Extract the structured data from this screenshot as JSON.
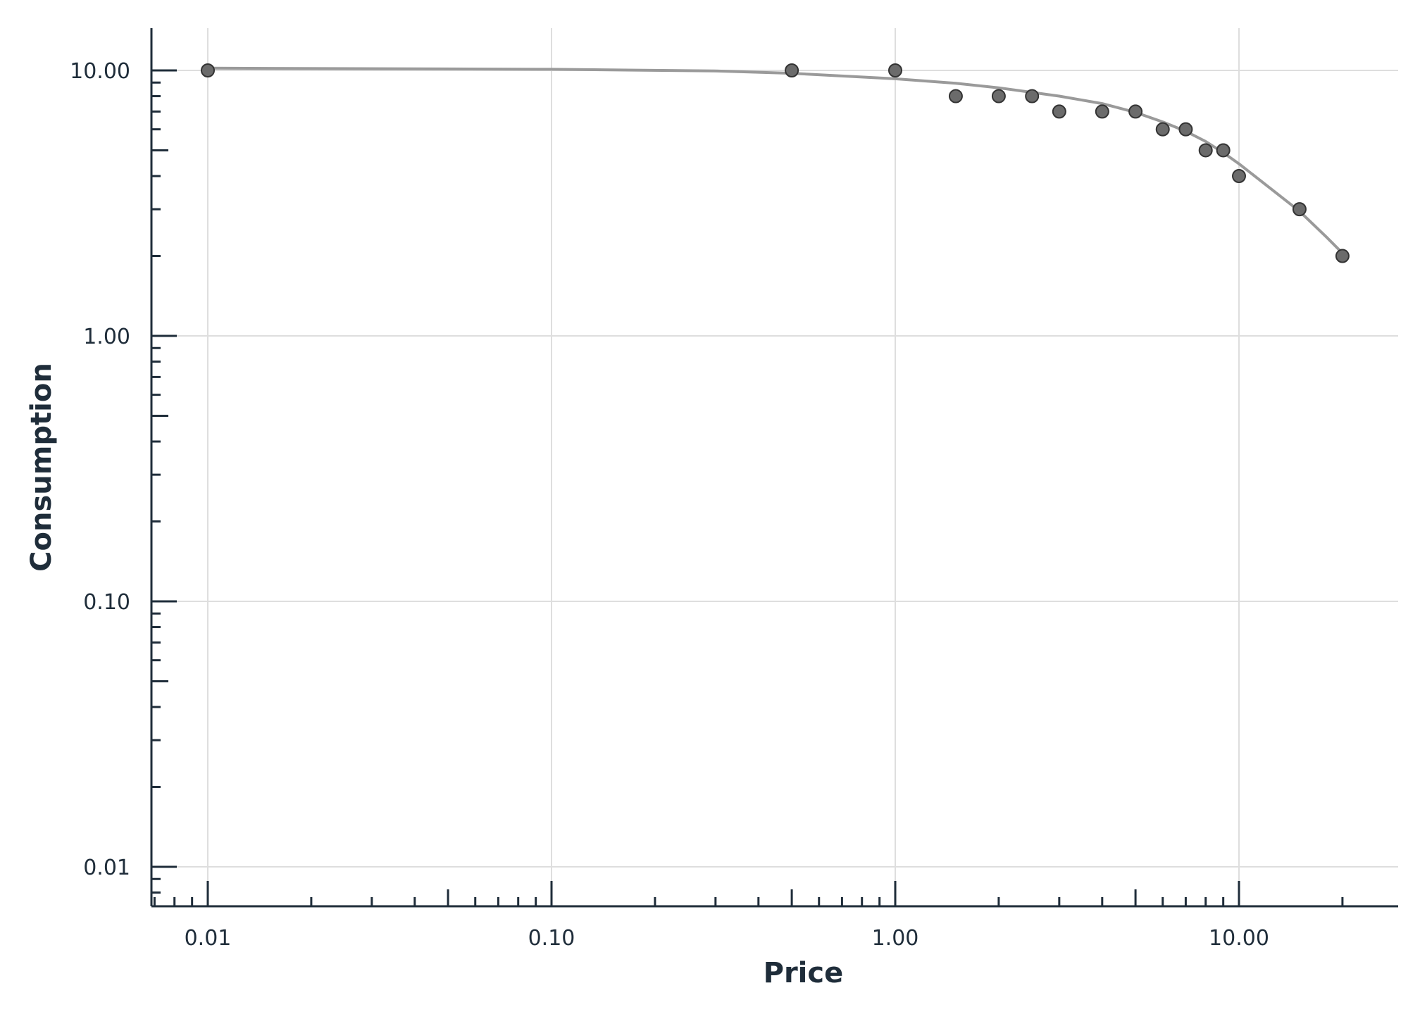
{
  "chart_data": {
    "type": "scatter",
    "title": "",
    "xlabel": "Price",
    "ylabel": "Consumption",
    "x_scale": "log",
    "y_scale": "log",
    "xlim": [
      0.0067,
      28
    ],
    "ylim": [
      0.0072,
      14.3
    ],
    "grid": true,
    "legend": "none",
    "x_ticks": [
      {
        "value": 0.01,
        "label": "0.01"
      },
      {
        "value": 0.1,
        "label": "0.10"
      },
      {
        "value": 1,
        "label": "1.00"
      },
      {
        "value": 10,
        "label": "10.00"
      }
    ],
    "y_ticks": [
      {
        "value": 0.01,
        "label": "0.01"
      },
      {
        "value": 0.1,
        "label": "0.10"
      },
      {
        "value": 1,
        "label": "1.00"
      },
      {
        "value": 10,
        "label": "10.00"
      }
    ],
    "points": [
      {
        "x": 0.01,
        "y": 10
      },
      {
        "x": 0.5,
        "y": 10
      },
      {
        "x": 1,
        "y": 10
      },
      {
        "x": 1.5,
        "y": 8
      },
      {
        "x": 2,
        "y": 8
      },
      {
        "x": 2.5,
        "y": 8
      },
      {
        "x": 3,
        "y": 7
      },
      {
        "x": 4,
        "y": 7
      },
      {
        "x": 5,
        "y": 7
      },
      {
        "x": 6,
        "y": 6
      },
      {
        "x": 7,
        "y": 6
      },
      {
        "x": 8,
        "y": 5
      },
      {
        "x": 9,
        "y": 5
      },
      {
        "x": 10,
        "y": 4
      },
      {
        "x": 15,
        "y": 3
      },
      {
        "x": 20,
        "y": 2
      }
    ],
    "fit_curve": [
      {
        "x": 0.01,
        "y": 10.2
      },
      {
        "x": 0.1,
        "y": 10.1
      },
      {
        "x": 0.3,
        "y": 9.95
      },
      {
        "x": 0.5,
        "y": 9.75
      },
      {
        "x": 1,
        "y": 9.3
      },
      {
        "x": 1.5,
        "y": 8.95
      },
      {
        "x": 2,
        "y": 8.6
      },
      {
        "x": 3,
        "y": 8.0
      },
      {
        "x": 4,
        "y": 7.5
      },
      {
        "x": 5,
        "y": 6.95
      },
      {
        "x": 6,
        "y": 6.4
      },
      {
        "x": 7,
        "y": 5.9
      },
      {
        "x": 8,
        "y": 5.4
      },
      {
        "x": 9,
        "y": 4.9
      },
      {
        "x": 10,
        "y": 4.45
      },
      {
        "x": 12,
        "y": 3.7
      },
      {
        "x": 15,
        "y": 2.95
      },
      {
        "x": 18,
        "y": 2.35
      },
      {
        "x": 20,
        "y": 2.05
      }
    ],
    "colors": {
      "point_fill": "#6b6b6b",
      "point_stroke": "#333333",
      "curve": "#9a9a9a",
      "grid": "#dedede",
      "axis": "#1f2d3a"
    }
  }
}
